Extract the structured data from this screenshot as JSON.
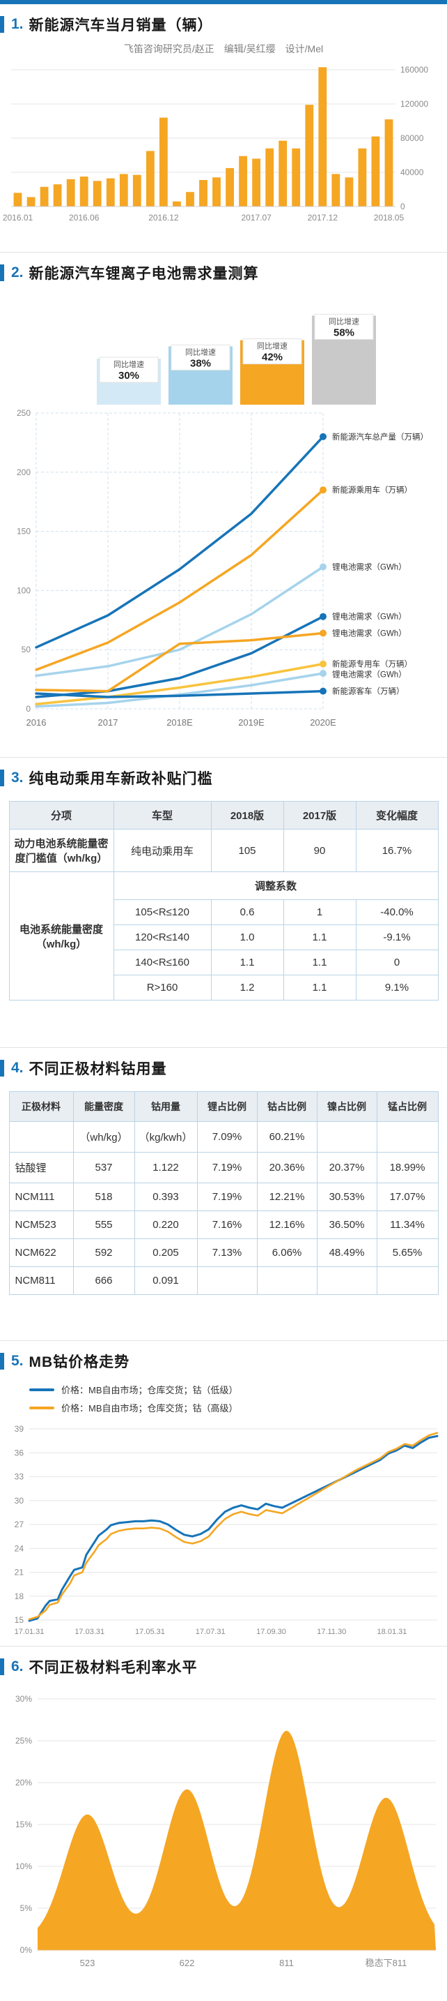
{
  "colors": {
    "blue": "#1774b8",
    "orange": "#f5a623",
    "light_blue": "#a6d3ec",
    "pale_blue": "#d4e9f6",
    "yellow": "#f8c33d",
    "gray_bar": "#c9c9c9"
  },
  "sections": {
    "sec1": {
      "num": "1.",
      "title": "新能源汽车当月销量（辆）",
      "credits": "飞笛咨询研究员/赵正　编辑/吴红缨　设计/Mel"
    },
    "sec2": {
      "num": "2.",
      "title": "新能源汽车锂离子电池需求量测算"
    },
    "sec3": {
      "num": "3.",
      "title": "纯电动乘用车新政补贴门槛",
      "table": {
        "headers": [
          "分项",
          "车型",
          "2018版",
          "2017版",
          "变化幅度"
        ],
        "row1_label": "动力电池系统能量密度门槛值（wh/kg）",
        "row1": [
          "纯电动乘用车",
          "105",
          "90",
          "16.7%"
        ],
        "group_label": "电池系统能量密度（wh/kg）",
        "adjust_label": "调整系数",
        "rows": [
          [
            "105<R≤120",
            "0.6",
            "1",
            "-40.0%"
          ],
          [
            "120<R≤140",
            "1.0",
            "1.1",
            "-9.1%"
          ],
          [
            "140<R≤160",
            "1.1",
            "1.1",
            "0"
          ],
          [
            "R>160",
            "1.2",
            "1.1",
            "9.1%"
          ]
        ]
      }
    },
    "sec4": {
      "num": "4.",
      "title": "不同正极材料钴用量",
      "table": {
        "headers": [
          "正极材料",
          "能量密度",
          "钴用量",
          "锂占比例",
          "钴占比例",
          "镍占比例",
          "锰占比例"
        ],
        "rows": [
          [
            "",
            "（wh/kg）",
            "（kg/kwh）",
            "7.09%",
            "60.21%",
            "",
            ""
          ],
          [
            "钴酸锂",
            "537",
            "1.122",
            "7.19%",
            "20.36%",
            "20.37%",
            "18.99%"
          ],
          [
            "NCM111",
            "518",
            "0.393",
            "7.19%",
            "12.21%",
            "30.53%",
            "17.07%"
          ],
          [
            "NCM523",
            "555",
            "0.220",
            "7.16%",
            "12.16%",
            "36.50%",
            "11.34%"
          ],
          [
            "NCM622",
            "592",
            "0.205",
            "7.13%",
            "6.06%",
            "48.49%",
            "5.65%"
          ],
          [
            "NCM811",
            "666",
            "0.091",
            "",
            "",
            "",
            ""
          ]
        ]
      }
    },
    "sec5": {
      "num": "5.",
      "title": "MB钴价格走势"
    },
    "sec6": {
      "num": "6.",
      "title": "不同正极材料毛利率水平"
    }
  },
  "chart_data": [
    {
      "id": "monthly-sales",
      "type": "bar",
      "title": "新能源汽车当月销量（辆）",
      "categories": [
        "2016.01",
        "2016.02",
        "2016.03",
        "2016.04",
        "2016.05",
        "2016.06",
        "2016.07",
        "2016.08",
        "2016.09",
        "2016.10",
        "2016.11",
        "2016.12",
        "2017.01",
        "2017.02",
        "2017.03",
        "2017.04",
        "2017.05",
        "2017.06",
        "2017.07",
        "2017.08",
        "2017.09",
        "2017.10",
        "2017.11",
        "2017.12",
        "2018.01",
        "2018.02",
        "2018.03",
        "2018.04",
        "2018.05"
      ],
      "values": [
        16000,
        11000,
        23000,
        26000,
        32000,
        35000,
        30000,
        33000,
        38000,
        37000,
        65000,
        104000,
        6000,
        17000,
        31000,
        34000,
        45000,
        59000,
        56000,
        68000,
        77000,
        68000,
        119000,
        163000,
        38000,
        34000,
        68000,
        82000,
        102000
      ],
      "x_tick_labels": [
        "2016.01",
        "2016.06",
        "2016.12",
        "2017.07",
        "2017.12",
        "2018.05"
      ],
      "x_tick_index": [
        0,
        5,
        11,
        18,
        23,
        28
      ],
      "y_ticks": [
        0,
        40000,
        80000,
        120000,
        160000
      ],
      "ylim": [
        0,
        160000
      ],
      "bar_color": "#f5a623",
      "y_axis_side": "right",
      "grid": true
    },
    {
      "id": "battery-demand",
      "type": "line",
      "title": "新能源汽车锂离子电池需求量测算",
      "x": [
        "2016",
        "2017",
        "2018E",
        "2019E",
        "2020E"
      ],
      "y_ticks": [
        0,
        50,
        100,
        150,
        200,
        250
      ],
      "ylim": [
        0,
        250
      ],
      "growth_bars": {
        "caption": "同比增速",
        "rates": [
          {
            "label": "30%",
            "value": 30,
            "color": "#d4e9f6"
          },
          {
            "label": "38%",
            "value": 38,
            "color": "#a6d3ec"
          },
          {
            "label": "42%",
            "value": 42,
            "color": "#f5a623"
          },
          {
            "label": "58%",
            "value": 58,
            "color": "#c9c9c9"
          }
        ]
      },
      "series": [
        {
          "name": "新能源汽车总产量（万辆）",
          "color": "#1774b8",
          "values": [
            52,
            79,
            118,
            165,
            230
          ]
        },
        {
          "name": "新能源乘用车（万辆）",
          "color": "#f5a623",
          "values": [
            33,
            56,
            90,
            130,
            185
          ]
        },
        {
          "name": "锂电池需求（GWh）",
          "color": "#a6d3ec",
          "values": [
            28,
            36,
            50,
            80,
            120
          ]
        },
        {
          "name": "锂电池需求（GWh）",
          "color": "#1774b8",
          "values": [
            10,
            15,
            26,
            47,
            78
          ]
        },
        {
          "name": "锂电池需求（GWh）",
          "color": "#f5a623",
          "values": [
            16,
            15,
            55,
            58,
            64
          ]
        },
        {
          "name": "新能源专用车（万辆）",
          "color": "#f8c33d",
          "values": [
            4,
            10,
            18,
            27,
            38
          ]
        },
        {
          "name": "锂电池需求（GWh）",
          "color": "#a6d3ec",
          "values": [
            2,
            5,
            12,
            20,
            30
          ]
        },
        {
          "name": "新能源客车（万辆）",
          "color": "#1774b8",
          "values": [
            13,
            10,
            11,
            13,
            15
          ]
        }
      ]
    },
    {
      "id": "cobalt-price",
      "type": "line",
      "title": "MB钴价格走势",
      "legend": [
        {
          "name": "价格：MB自由市场；仓库交货；钴（低级）",
          "color": "#1774b8"
        },
        {
          "name": "价格：MB自由市场；仓库交货；钴（高级）",
          "color": "#f5a623"
        }
      ],
      "y_ticks": [
        15,
        18,
        21,
        24,
        27,
        30,
        33,
        36,
        39
      ],
      "ylim": [
        15,
        39
      ],
      "x_tick_labels": [
        "17.01.31",
        "17.03.31",
        "17.05.31",
        "17.07.31",
        "17.09.30",
        "17.11.30",
        "18.01.31"
      ],
      "x_tick_pos": [
        0,
        0.148,
        0.296,
        0.444,
        0.593,
        0.741,
        0.889
      ],
      "series": [
        {
          "name": "钴（低级）",
          "color": "#1774b8",
          "points": [
            [
              0,
              14.9
            ],
            [
              0.02,
              15.2
            ],
            [
              0.04,
              16.8
            ],
            [
              0.05,
              17.4
            ],
            [
              0.07,
              17.6
            ],
            [
              0.08,
              18.8
            ],
            [
              0.1,
              20.5
            ],
            [
              0.11,
              21.3
            ],
            [
              0.13,
              21.6
            ],
            [
              0.14,
              23.2
            ],
            [
              0.16,
              24.8
            ],
            [
              0.17,
              25.6
            ],
            [
              0.19,
              26.4
            ],
            [
              0.2,
              26.9
            ],
            [
              0.22,
              27.2
            ],
            [
              0.24,
              27.3
            ],
            [
              0.26,
              27.4
            ],
            [
              0.28,
              27.4
            ],
            [
              0.3,
              27.5
            ],
            [
              0.32,
              27.4
            ],
            [
              0.34,
              27.0
            ],
            [
              0.36,
              26.3
            ],
            [
              0.38,
              25.7
            ],
            [
              0.4,
              25.5
            ],
            [
              0.42,
              25.8
            ],
            [
              0.44,
              26.4
            ],
            [
              0.46,
              27.6
            ],
            [
              0.48,
              28.6
            ],
            [
              0.5,
              29.1
            ],
            [
              0.52,
              29.4
            ],
            [
              0.54,
              29.1
            ],
            [
              0.56,
              28.9
            ],
            [
              0.58,
              29.6
            ],
            [
              0.6,
              29.3
            ],
            [
              0.62,
              29.1
            ],
            [
              0.64,
              29.6
            ],
            [
              0.66,
              30.1
            ],
            [
              0.68,
              30.6
            ],
            [
              0.7,
              31.1
            ],
            [
              0.72,
              31.6
            ],
            [
              0.74,
              32.1
            ],
            [
              0.76,
              32.6
            ],
            [
              0.78,
              33.1
            ],
            [
              0.8,
              33.6
            ],
            [
              0.82,
              34.1
            ],
            [
              0.84,
              34.6
            ],
            [
              0.86,
              35.1
            ],
            [
              0.88,
              35.9
            ],
            [
              0.9,
              36.3
            ],
            [
              0.92,
              36.9
            ],
            [
              0.94,
              36.6
            ],
            [
              0.96,
              37.3
            ],
            [
              0.98,
              37.9
            ],
            [
              1,
              38.1
            ]
          ]
        },
        {
          "name": "钴（高级）",
          "color": "#f5a623",
          "points": [
            [
              0,
              15.1
            ],
            [
              0.02,
              15.4
            ],
            [
              0.04,
              16.2
            ],
            [
              0.05,
              16.9
            ],
            [
              0.07,
              17.2
            ],
            [
              0.08,
              18.2
            ],
            [
              0.1,
              19.6
            ],
            [
              0.11,
              20.6
            ],
            [
              0.13,
              21.0
            ],
            [
              0.14,
              22.2
            ],
            [
              0.16,
              23.6
            ],
            [
              0.17,
              24.4
            ],
            [
              0.19,
              25.2
            ],
            [
              0.2,
              25.8
            ],
            [
              0.22,
              26.2
            ],
            [
              0.24,
              26.4
            ],
            [
              0.26,
              26.5
            ],
            [
              0.28,
              26.5
            ],
            [
              0.3,
              26.6
            ],
            [
              0.32,
              26.5
            ],
            [
              0.34,
              26.1
            ],
            [
              0.36,
              25.4
            ],
            [
              0.38,
              24.8
            ],
            [
              0.4,
              24.6
            ],
            [
              0.42,
              24.9
            ],
            [
              0.44,
              25.5
            ],
            [
              0.46,
              26.7
            ],
            [
              0.48,
              27.7
            ],
            [
              0.5,
              28.3
            ],
            [
              0.52,
              28.6
            ],
            [
              0.54,
              28.3
            ],
            [
              0.56,
              28.1
            ],
            [
              0.58,
              28.8
            ],
            [
              0.6,
              28.6
            ],
            [
              0.62,
              28.4
            ],
            [
              0.64,
              29.0
            ],
            [
              0.66,
              29.6
            ],
            [
              0.68,
              30.2
            ],
            [
              0.7,
              30.8
            ],
            [
              0.72,
              31.4
            ],
            [
              0.74,
              32.0
            ],
            [
              0.76,
              32.6
            ],
            [
              0.78,
              33.2
            ],
            [
              0.8,
              33.8
            ],
            [
              0.82,
              34.3
            ],
            [
              0.84,
              34.8
            ],
            [
              0.86,
              35.3
            ],
            [
              0.88,
              36.1
            ],
            [
              0.9,
              36.5
            ],
            [
              0.92,
              37.1
            ],
            [
              0.94,
              36.9
            ],
            [
              0.96,
              37.6
            ],
            [
              0.98,
              38.2
            ],
            [
              1,
              38.5
            ]
          ]
        }
      ]
    },
    {
      "id": "gross-margin",
      "type": "area",
      "title": "不同正极材料毛利率水平",
      "peaks": [
        {
          "label": "523",
          "value": 15
        },
        {
          "label": "622",
          "value": 18
        },
        {
          "label": "811",
          "value": 25
        },
        {
          "label": "稳态下811",
          "value": 17
        }
      ],
      "baseline_pct": 1.2,
      "y_ticks": [
        0,
        5,
        10,
        15,
        20,
        25,
        30
      ],
      "color": "#f5a623"
    }
  ]
}
